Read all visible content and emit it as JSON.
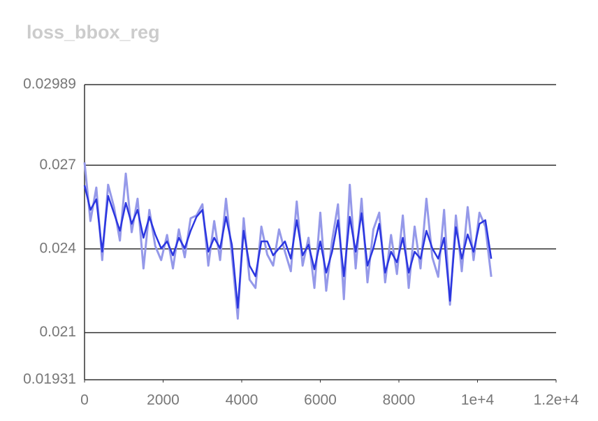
{
  "chart_data": {
    "type": "line",
    "title": "loss_bbox_reg",
    "x": [
      0,
      150,
      300,
      450,
      600,
      750,
      900,
      1050,
      1200,
      1350,
      1500,
      1650,
      1800,
      1950,
      2100,
      2250,
      2400,
      2550,
      2700,
      2850,
      3000,
      3150,
      3300,
      3450,
      3600,
      3750,
      3900,
      4050,
      4200,
      4350,
      4500,
      4650,
      4800,
      4950,
      5100,
      5250,
      5400,
      5550,
      5700,
      5850,
      6000,
      6150,
      6300,
      6450,
      6600,
      6750,
      6900,
      7050,
      7200,
      7350,
      7500,
      7650,
      7800,
      7950,
      8100,
      8250,
      8400,
      8550,
      8700,
      8850,
      9000,
      9150,
      9300,
      9450,
      9600,
      9750,
      9900,
      10050,
      10200,
      10350
    ],
    "series": [
      {
        "color": "#9599e9",
        "values": [
          0.0271,
          0.025,
          0.0262,
          0.0236,
          0.0263,
          0.0255,
          0.0243,
          0.0267,
          0.0246,
          0.0258,
          0.0233,
          0.0254,
          0.0241,
          0.0236,
          0.0245,
          0.0233,
          0.0247,
          0.0237,
          0.0251,
          0.0252,
          0.0256,
          0.0234,
          0.025,
          0.0236,
          0.0258,
          0.0238,
          0.0215,
          0.0251,
          0.0229,
          0.0226,
          0.0248,
          0.0238,
          0.0234,
          0.0247,
          0.0239,
          0.0232,
          0.0257,
          0.0234,
          0.0244,
          0.0226,
          0.0253,
          0.0225,
          0.0243,
          0.0256,
          0.0222,
          0.0263,
          0.0233,
          0.0258,
          0.0228,
          0.0247,
          0.0253,
          0.0228,
          0.0245,
          0.0231,
          0.0252,
          0.0226,
          0.0248,
          0.0233,
          0.0258,
          0.0237,
          0.023,
          0.0254,
          0.022,
          0.0252,
          0.0232,
          0.0255,
          0.0236,
          0.0253,
          0.0248,
          0.023
        ]
      },
      {
        "color": "#2b36e0",
        "values": [
          0.02628,
          0.0254,
          0.02578,
          0.0239,
          0.0259,
          0.02528,
          0.02465,
          0.02565,
          0.0249,
          0.0254,
          0.0244,
          0.02515,
          0.02452,
          0.02402,
          0.02427,
          0.02377,
          0.0244,
          0.02402,
          0.02465,
          0.02515,
          0.0254,
          0.0239,
          0.0244,
          0.02402,
          0.02515,
          0.02415,
          0.02189,
          0.02465,
          0.0234,
          0.02302,
          0.02427,
          0.02427,
          0.02377,
          0.02402,
          0.02427,
          0.02365,
          0.02503,
          0.02377,
          0.02415,
          0.02327,
          0.02427,
          0.02315,
          0.0239,
          0.02503,
          0.02302,
          0.02515,
          0.0239,
          0.02528,
          0.0234,
          0.02402,
          0.0249,
          0.02315,
          0.0239,
          0.02352,
          0.0244,
          0.02315,
          0.0239,
          0.02365,
          0.02465,
          0.02402,
          0.02365,
          0.0244,
          0.02214,
          0.02478,
          0.02365,
          0.02452,
          0.0239,
          0.0249,
          0.02503,
          0.02365
        ]
      }
    ],
    "xlim": [
      0,
      12000
    ],
    "xticks": [
      0,
      2000,
      4000,
      6000,
      8000,
      {
        "value": 10000,
        "label": "1e+4"
      },
      {
        "value": 12000,
        "label": "1.2e+4"
      }
    ],
    "ylim": [
      0.01931,
      0.02989
    ],
    "yticks": [
      0.01931,
      0.021,
      0.024,
      0.027,
      0.02989
    ],
    "grid": true
  }
}
